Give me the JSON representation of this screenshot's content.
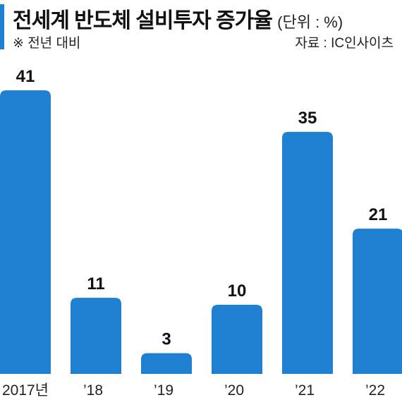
{
  "header": {
    "title": "전세계 반도체 설비투자 증가율",
    "unit": "(단위 : %)",
    "note": "※ 전년 대비",
    "source": "자료 : IC인사이츠"
  },
  "colors": {
    "bar": "#1f7fd1",
    "accent": "#1f7fd1",
    "text": "#111111"
  },
  "chart_data": {
    "type": "bar",
    "categories": [
      "2017년",
      "’18",
      "’19",
      "’20",
      "’21",
      "’22"
    ],
    "values": [
      41,
      11,
      3,
      10,
      35,
      21
    ],
    "title": "전세계 반도체 설비투자 증가율",
    "xlabel": "",
    "ylabel": "",
    "ylim": [
      0,
      41
    ],
    "grid": false,
    "legend": "none"
  }
}
